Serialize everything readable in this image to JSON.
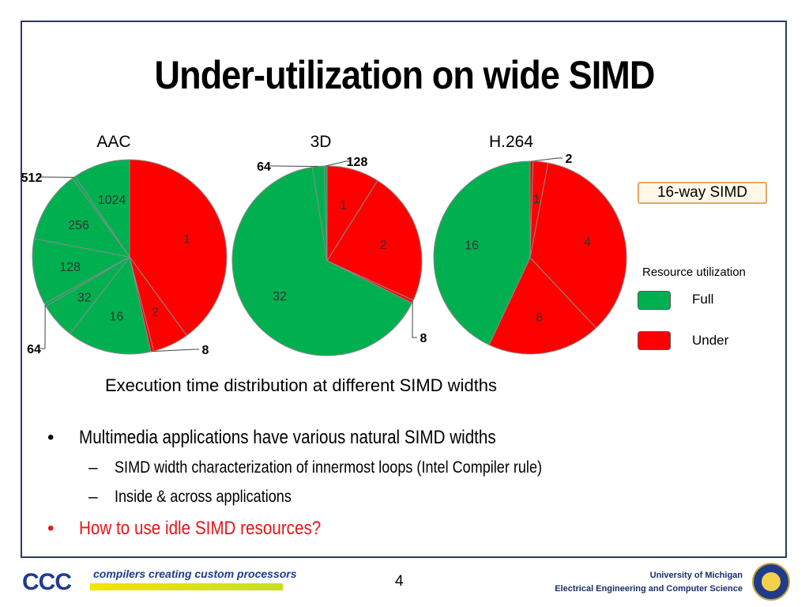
{
  "slide": {
    "title": "Under-utilization on wide SIMD",
    "simd_badge": "16-way SIMD",
    "caption": "Execution time distribution at different SIMD widths",
    "page_number": "4"
  },
  "legend": {
    "title": "Resource utilization",
    "items": [
      {
        "label": "Full",
        "color": "#00b050"
      },
      {
        "label": "Under",
        "color": "#ff0000"
      }
    ]
  },
  "bullets": [
    {
      "mark": "•",
      "text": "Multimedia applications have various natural SIMD widths"
    },
    {
      "mark": "–",
      "text": "SIMD width characterization of innermost loops (Intel Compiler rule)"
    },
    {
      "mark": "–",
      "text": "Inside & across applications"
    },
    {
      "mark": "•",
      "text": "How to use idle SIMD resources?"
    }
  ],
  "footer": {
    "logo_text": "CCC",
    "tagline": "compilers creating custom processors",
    "university_line1": "University of Michigan",
    "university_line2": "Electrical Engineering and Computer Science"
  },
  "colors": {
    "full": "#00b050",
    "under": "#ff0000",
    "frame": "#2e3a59"
  },
  "chart_data": [
    {
      "type": "pie",
      "title": "AAC",
      "slices": [
        {
          "label": "1",
          "value": 40,
          "status": "under"
        },
        {
          "label": "2",
          "value": 6,
          "status": "under"
        },
        {
          "label": "8",
          "value": 0.5,
          "status": "under"
        },
        {
          "label": "16",
          "value": 14,
          "status": "full"
        },
        {
          "label": "32",
          "value": 6,
          "status": "full"
        },
        {
          "label": "64",
          "value": 0.5,
          "status": "full"
        },
        {
          "label": "128",
          "value": 11,
          "status": "full"
        },
        {
          "label": "256",
          "value": 12,
          "status": "full"
        },
        {
          "label": "512",
          "value": 0.5,
          "status": "full"
        },
        {
          "label": "1024",
          "value": 9.5,
          "status": "full"
        }
      ]
    },
    {
      "type": "pie",
      "title": "3D",
      "slices": [
        {
          "label": "1",
          "value": 9,
          "status": "under"
        },
        {
          "label": "2",
          "value": 23,
          "status": "under"
        },
        {
          "label": "8",
          "value": 0.5,
          "status": "under"
        },
        {
          "label": "32",
          "value": 65.5,
          "status": "full"
        },
        {
          "label": "64",
          "value": 2,
          "status": "full"
        },
        {
          "label": "128",
          "value": 0.5,
          "status": "full"
        }
      ]
    },
    {
      "type": "pie",
      "title": "H.264",
      "slices": [
        {
          "label": "2",
          "value": 0.5,
          "status": "under"
        },
        {
          "label": "1",
          "value": 2.5,
          "status": "under"
        },
        {
          "label": "4",
          "value": 35,
          "status": "under"
        },
        {
          "label": "8",
          "value": 19,
          "status": "under"
        },
        {
          "label": "16",
          "value": 43,
          "status": "full"
        }
      ]
    }
  ]
}
